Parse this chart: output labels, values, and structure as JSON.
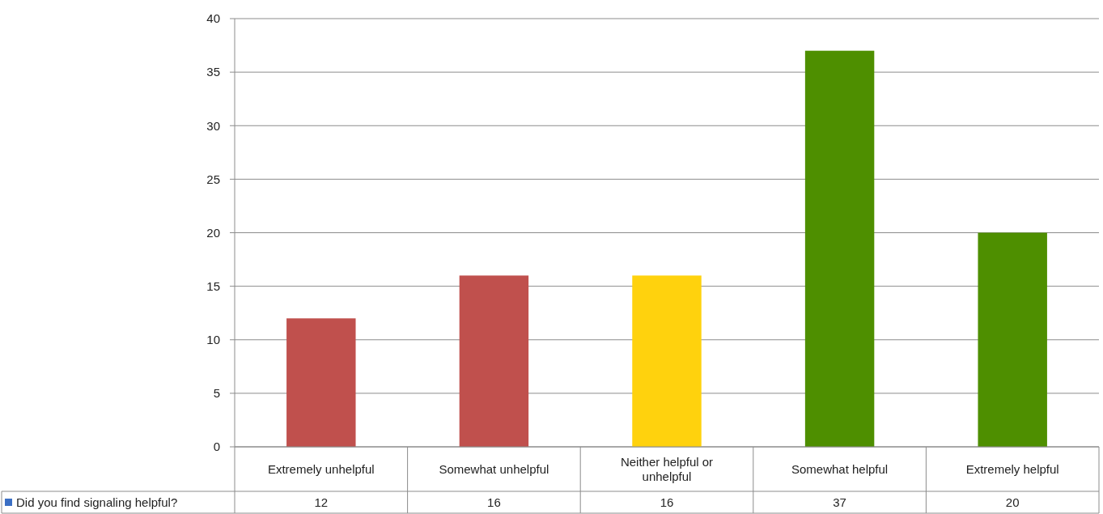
{
  "chart_data": {
    "type": "bar",
    "categories": [
      "Extremely unhelpful",
      "Somewhat unhelpful",
      "Neither helpful or unhelpful",
      "Somewhat helpful",
      "Extremely helpful"
    ],
    "series": [
      {
        "name": "Did you find signaling helpful?",
        "color": "#3b6fc4",
        "colors": [
          "#c0504d",
          "#c0504d",
          "#ffd20d",
          "#4e8f00",
          "#4e8f00"
        ],
        "values": [
          12,
          16,
          16,
          37,
          20
        ]
      }
    ],
    "ylim": [
      0,
      40
    ],
    "yticks": [
      0,
      5,
      10,
      15,
      20,
      25,
      30,
      35,
      40
    ],
    "grid": "y",
    "data_labels": true,
    "legend": "bottom left"
  }
}
